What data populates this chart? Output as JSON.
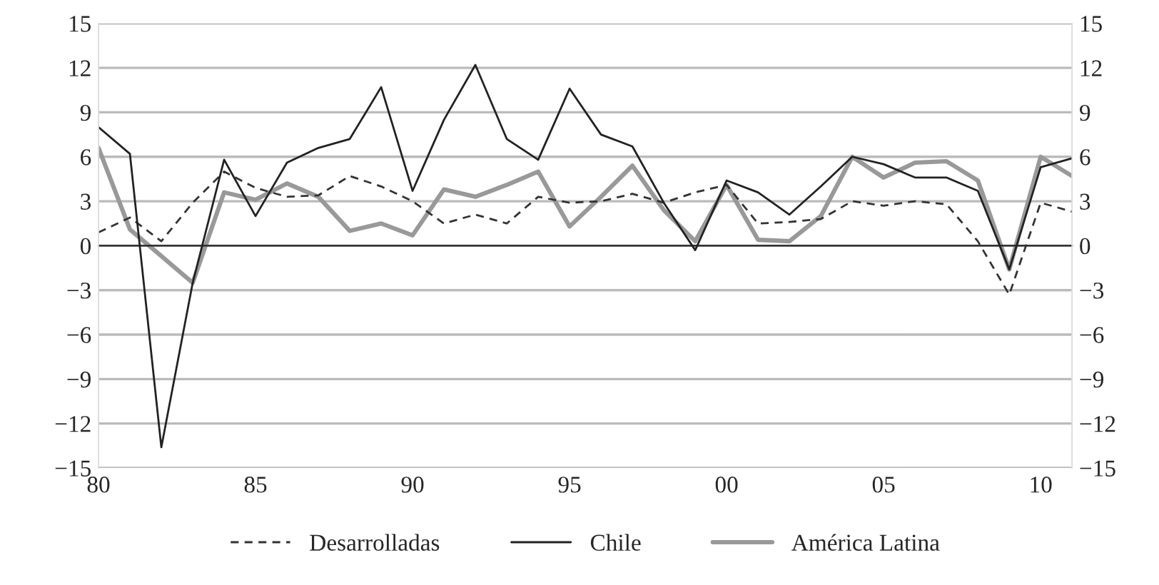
{
  "chart_data": {
    "type": "line",
    "x": [
      1980,
      1981,
      1982,
      1983,
      1984,
      1985,
      1986,
      1987,
      1988,
      1989,
      1990,
      1991,
      1992,
      1993,
      1994,
      1995,
      1996,
      1997,
      1998,
      1999,
      2000,
      2001,
      2002,
      2003,
      2004,
      2005,
      2006,
      2007,
      2008,
      2009,
      2010,
      2011
    ],
    "series": [
      {
        "name": "Desarrolladas",
        "color": "#333333",
        "line_style": "dashed",
        "values": [
          0.9,
          1.9,
          0.3,
          2.9,
          5.0,
          3.9,
          3.3,
          3.4,
          4.7,
          4.0,
          3.0,
          1.5,
          2.1,
          1.5,
          3.3,
          2.9,
          3.0,
          3.5,
          2.9,
          3.6,
          4.1,
          1.5,
          1.6,
          1.8,
          3.0,
          2.7,
          3.0,
          2.8,
          0.3,
          -3.3,
          2.9,
          2.3
        ]
      },
      {
        "name": "Chile",
        "color": "#222222",
        "line_style": "solid",
        "values": [
          8.0,
          6.2,
          -13.6,
          -2.5,
          5.8,
          2.0,
          5.6,
          6.6,
          7.2,
          10.7,
          3.7,
          8.5,
          12.2,
          7.2,
          5.8,
          10.6,
          7.5,
          6.7,
          2.9,
          -0.3,
          4.4,
          3.6,
          2.1,
          4.0,
          6.0,
          5.5,
          4.6,
          4.6,
          3.7,
          -1.6,
          5.3,
          5.9
        ]
      },
      {
        "name": "América Latina",
        "color": "#999999",
        "line_style": "solid",
        "values": [
          6.6,
          1.1,
          -0.7,
          -2.5,
          3.6,
          3.1,
          4.2,
          3.3,
          1.0,
          1.5,
          0.7,
          3.8,
          3.3,
          4.1,
          5.0,
          1.3,
          3.3,
          5.4,
          2.4,
          0.3,
          4.1,
          0.4,
          0.3,
          2.0,
          6.0,
          4.6,
          5.6,
          5.7,
          4.4,
          -1.6,
          6.0,
          4.7
        ]
      }
    ],
    "xlim": [
      1980,
      2011
    ],
    "xticks": [
      {
        "value": 1980,
        "label": "80"
      },
      {
        "value": 1985,
        "label": "85"
      },
      {
        "value": 1990,
        "label": "90"
      },
      {
        "value": 1995,
        "label": "95"
      },
      {
        "value": 2000,
        "label": "00"
      },
      {
        "value": 2005,
        "label": "05"
      },
      {
        "value": 2010,
        "label": "10"
      }
    ],
    "ylim": [
      -15,
      15
    ],
    "yticks": [
      {
        "value": -15,
        "label": "−15"
      },
      {
        "value": -12,
        "label": "−12"
      },
      {
        "value": -9,
        "label": "−9"
      },
      {
        "value": -6,
        "label": "−6"
      },
      {
        "value": -3,
        "label": "−3"
      },
      0,
      3,
      6,
      9,
      12,
      15
    ],
    "y2lim": [
      -15,
      15
    ],
    "y2ticks": [
      {
        "value": -15,
        "label": "−15"
      },
      {
        "value": -12,
        "label": "−12"
      },
      {
        "value": -9,
        "label": "−9"
      },
      {
        "value": -6,
        "label": "−6"
      },
      {
        "value": -3,
        "label": "−3"
      },
      0,
      3,
      6,
      9,
      12,
      15
    ],
    "grid": "y",
    "legend": "bottom",
    "marker": "none"
  }
}
